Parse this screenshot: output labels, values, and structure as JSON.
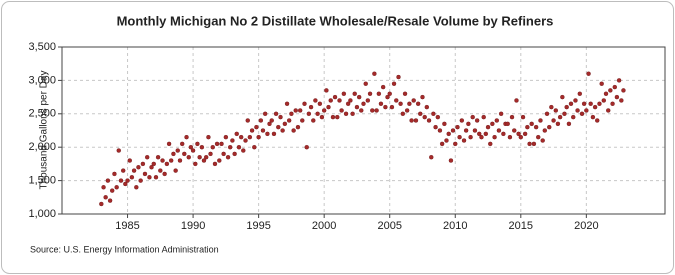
{
  "chart_data": {
    "type": "scatter",
    "title": "Monthly Michigan No 2 Distillate Wholesale/Resale Volume by Refiners",
    "y_label": "Thousand Gallons per Day",
    "source": "Source: U.S. Energy Information Administration",
    "color": "#a52a2a",
    "grid": true,
    "xlim": [
      1980,
      2026
    ],
    "xticks": [
      1985,
      1990,
      1995,
      2000,
      2005,
      2010,
      2015,
      2020
    ],
    "ylim": [
      1000,
      3500
    ],
    "yticks": [
      {
        "value": 1000,
        "label": "1,000"
      },
      {
        "value": 1500,
        "label": "1,500"
      },
      {
        "value": 2000,
        "label": "2,000"
      },
      {
        "value": 2500,
        "label": "2,500"
      },
      {
        "value": 3000,
        "label": "3,000"
      },
      {
        "value": 3500,
        "label": "3,500"
      }
    ],
    "x": [
      1983.0,
      1983.17,
      1983.33,
      1983.5,
      1983.67,
      1983.83,
      1984.0,
      1984.17,
      1984.33,
      1984.5,
      1984.67,
      1984.83,
      1985.0,
      1985.17,
      1985.33,
      1985.5,
      1985.67,
      1985.83,
      1986.0,
      1986.17,
      1986.33,
      1986.5,
      1986.67,
      1986.83,
      1987.0,
      1987.17,
      1987.33,
      1987.5,
      1987.67,
      1987.83,
      1988.0,
      1988.17,
      1988.33,
      1988.5,
      1988.67,
      1988.83,
      1989.0,
      1989.17,
      1989.33,
      1989.5,
      1989.67,
      1989.83,
      1990.0,
      1990.17,
      1990.33,
      1990.5,
      1990.67,
      1990.83,
      1991.0,
      1991.17,
      1991.33,
      1991.5,
      1991.67,
      1991.83,
      1992.0,
      1992.17,
      1992.33,
      1992.5,
      1992.67,
      1992.83,
      1993.0,
      1993.17,
      1993.33,
      1993.5,
      1993.67,
      1993.83,
      1994.0,
      1994.17,
      1994.33,
      1994.5,
      1994.67,
      1994.83,
      1995.0,
      1995.17,
      1995.33,
      1995.5,
      1995.67,
      1995.83,
      1996.0,
      1996.17,
      1996.33,
      1996.5,
      1996.67,
      1996.83,
      1997.0,
      1997.17,
      1997.33,
      1997.5,
      1997.67,
      1997.83,
      1998.0,
      1998.17,
      1998.33,
      1998.5,
      1998.67,
      1998.83,
      1999.0,
      1999.17,
      1999.33,
      1999.5,
      1999.67,
      1999.83,
      2000.0,
      2000.17,
      2000.33,
      2000.5,
      2000.67,
      2000.83,
      2001.0,
      2001.17,
      2001.33,
      2001.5,
      2001.67,
      2001.83,
      2002.0,
      2002.17,
      2002.33,
      2002.5,
      2002.67,
      2002.83,
      2003.0,
      2003.17,
      2003.33,
      2003.5,
      2003.67,
      2003.83,
      2004.0,
      2004.17,
      2004.33,
      2004.5,
      2004.67,
      2004.83,
      2005.0,
      2005.17,
      2005.33,
      2005.5,
      2005.67,
      2005.83,
      2006.0,
      2006.17,
      2006.33,
      2006.5,
      2006.67,
      2006.83,
      2007.0,
      2007.17,
      2007.33,
      2007.5,
      2007.67,
      2007.83,
      2008.0,
      2008.17,
      2008.33,
      2008.5,
      2008.67,
      2008.83,
      2009.0,
      2009.17,
      2009.33,
      2009.5,
      2009.67,
      2009.83,
      2010.0,
      2010.17,
      2010.33,
      2010.5,
      2010.67,
      2010.83,
      2011.0,
      2011.17,
      2011.33,
      2011.5,
      2011.67,
      2011.83,
      2012.0,
      2012.17,
      2012.33,
      2012.5,
      2012.67,
      2012.83,
      2013.0,
      2013.17,
      2013.33,
      2013.5,
      2013.67,
      2013.83,
      2014.0,
      2014.17,
      2014.33,
      2014.5,
      2014.67,
      2014.83,
      2015.0,
      2015.17,
      2015.33,
      2015.5,
      2015.67,
      2015.83,
      2016.0,
      2016.17,
      2016.33,
      2016.5,
      2016.67,
      2016.83,
      2017.0,
      2017.17,
      2017.33,
      2017.5,
      2017.67,
      2017.83,
      2018.0,
      2018.17,
      2018.33,
      2018.5,
      2018.67,
      2018.83,
      2019.0,
      2019.17,
      2019.33,
      2019.5,
      2019.67,
      2019.83,
      2020.0,
      2020.17,
      2020.33,
      2020.5,
      2020.67,
      2020.83,
      2021.0,
      2021.17,
      2021.33,
      2021.5,
      2021.67,
      2021.83,
      2022.0,
      2022.17,
      2022.33,
      2022.5,
      2022.67,
      2022.83
    ],
    "values": [
      1150,
      1400,
      1250,
      1500,
      1200,
      1350,
      1600,
      1400,
      1950,
      1500,
      1650,
      1450,
      1500,
      1800,
      1550,
      1650,
      1400,
      1700,
      1500,
      1750,
      1600,
      1850,
      1550,
      1700,
      1750,
      1550,
      1850,
      1650,
      1800,
      1600,
      1750,
      2050,
      1800,
      1900,
      1650,
      1950,
      1800,
      2050,
      1900,
      2150,
      1850,
      2000,
      1950,
      1750,
      2050,
      1850,
      2000,
      1800,
      1850,
      2150,
      1900,
      2000,
      1750,
      2050,
      1800,
      2050,
      1900,
      2150,
      1850,
      2000,
      2100,
      1900,
      2200,
      2000,
      2150,
      1950,
      2100,
      2400,
      2150,
      2250,
      2000,
      2300,
      2150,
      2400,
      2250,
      2500,
      2200,
      2350,
      2400,
      2200,
      2500,
      2300,
      2450,
      2250,
      2350,
      2650,
      2400,
      2500,
      2250,
      2550,
      2300,
      2550,
      2400,
      2650,
      2000,
      2500,
      2600,
      2400,
      2700,
      2500,
      2650,
      2450,
      2550,
      2850,
      2600,
      2700,
      2450,
      2750,
      2450,
      2700,
      2550,
      2800,
      2500,
      2650,
      2700,
      2500,
      2800,
      2600,
      2750,
      2550,
      2650,
      2950,
      2700,
      2800,
      2550,
      3100,
      2550,
      2800,
      2650,
      2900,
      2600,
      2750,
      2800,
      2600,
      2950,
      2700,
      3050,
      2650,
      2500,
      2800,
      2550,
      2650,
      2400,
      2700,
      2400,
      2650,
      2500,
      2750,
      2450,
      2600,
      2400,
      1850,
      2500,
      2300,
      2450,
      2250,
      2050,
      2350,
      2100,
      2200,
      1800,
      2250,
      2050,
      2300,
      2150,
      2400,
      2100,
      2250,
      2350,
      2150,
      2450,
      2250,
      2400,
      2200,
      2150,
      2450,
      2200,
      2300,
      2050,
      2350,
      2150,
      2400,
      2250,
      2500,
      2200,
      2350,
      2350,
      2150,
      2450,
      2250,
      2700,
      2200,
      2150,
      2450,
      2200,
      2300,
      2050,
      2350,
      2050,
      2300,
      2150,
      2400,
      2100,
      2250,
      2500,
      2300,
      2600,
      2400,
      2550,
      2350,
      2450,
      2750,
      2500,
      2600,
      2350,
      2650,
      2450,
      2700,
      2550,
      2800,
      2500,
      2650,
      2550,
      3100,
      2650,
      2450,
      2600,
      2400,
      2650,
      2950,
      2700,
      2800,
      2550,
      2850,
      2650,
      2900,
      2750,
      3000,
      2700,
      2850
    ]
  }
}
